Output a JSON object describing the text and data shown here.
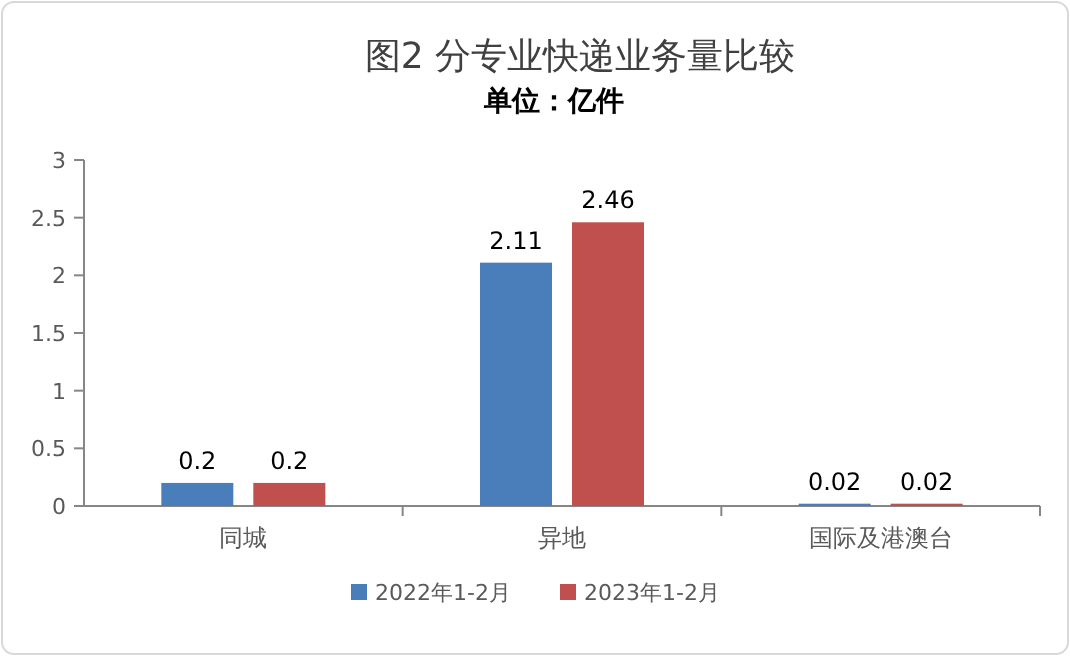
{
  "chart_data": {
    "type": "bar",
    "title": "图2 分专业快递业务量比较",
    "subtitle": "单位：亿件",
    "categories": [
      "同城",
      "异地",
      "国际及港澳台"
    ],
    "series": [
      {
        "name": "2022年1-2月",
        "color": "#4a7ebb",
        "values": [
          0.2,
          2.11,
          0.02
        ]
      },
      {
        "name": "2023年1-2月",
        "color": "#c0504d",
        "values": [
          0.2,
          2.46,
          0.02
        ]
      }
    ],
    "ylim": [
      0,
      3
    ],
    "yticks": [
      0,
      0.5,
      1,
      1.5,
      2,
      2.5,
      3
    ],
    "grid": false,
    "legend": "bottom",
    "data_labels": true
  }
}
